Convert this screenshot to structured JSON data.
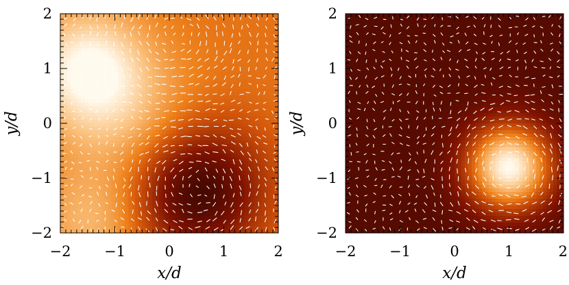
{
  "chart_data": [
    {
      "type": "heatmap",
      "title": "",
      "xlabel": "x/d",
      "ylabel": "y/d",
      "xlim": [
        -2,
        2
      ],
      "ylim": [
        -2,
        2
      ],
      "xticks": [
        "−2",
        "−1",
        "0",
        "1",
        "2"
      ],
      "yticks": [
        "−2",
        "−1",
        "0",
        "1",
        "2"
      ],
      "grid": false,
      "colormap": "heat (white → orange → dark red)",
      "field": {
        "background_level": 0.58,
        "features": [
          {
            "kind": "peak",
            "x": -1.5,
            "y": 1.0,
            "width": 0.75,
            "amplitude": 0.42
          },
          {
            "kind": "dip",
            "x": 0.5,
            "y": -1.2,
            "width": 0.85,
            "amplitude": 0.55
          },
          {
            "kind": "light-band",
            "x": -0.6,
            "y": -0.1,
            "width": 0.9,
            "amplitude": 0.2
          },
          {
            "kind": "light-band",
            "x": -1.4,
            "y": -1.8,
            "width": 0.7,
            "amplitude": 0.2
          }
        ]
      },
      "overlay": {
        "type": "velocity vectors",
        "color": "#ffffff",
        "vortices": [
          {
            "x": 0.5,
            "y": -1.2,
            "rotation": "counter-clockwise"
          },
          {
            "x": 0.1,
            "y": 1.6,
            "rotation": "clockwise"
          }
        ]
      }
    },
    {
      "type": "heatmap",
      "title": "",
      "xlabel": "x/d",
      "ylabel": "y/d",
      "xlim": [
        -2,
        2
      ],
      "ylim": [
        -2,
        2
      ],
      "xticks": [
        "−2",
        "−1",
        "0",
        "1",
        "2"
      ],
      "yticks": [
        "−2",
        "−1",
        "0",
        "1",
        "2"
      ],
      "grid": false,
      "colormap": "heat (dark red → orange → white)",
      "field": {
        "background_level": 0.12,
        "features": [
          {
            "kind": "peak",
            "x": 1.0,
            "y": -0.8,
            "width": 0.55,
            "amplitude": 0.88
          }
        ]
      },
      "overlay": {
        "type": "velocity vectors",
        "color": "#ffffff",
        "vortices": [
          {
            "x": 1.0,
            "y": -0.8,
            "rotation": "counter-clockwise"
          }
        ]
      }
    }
  ]
}
